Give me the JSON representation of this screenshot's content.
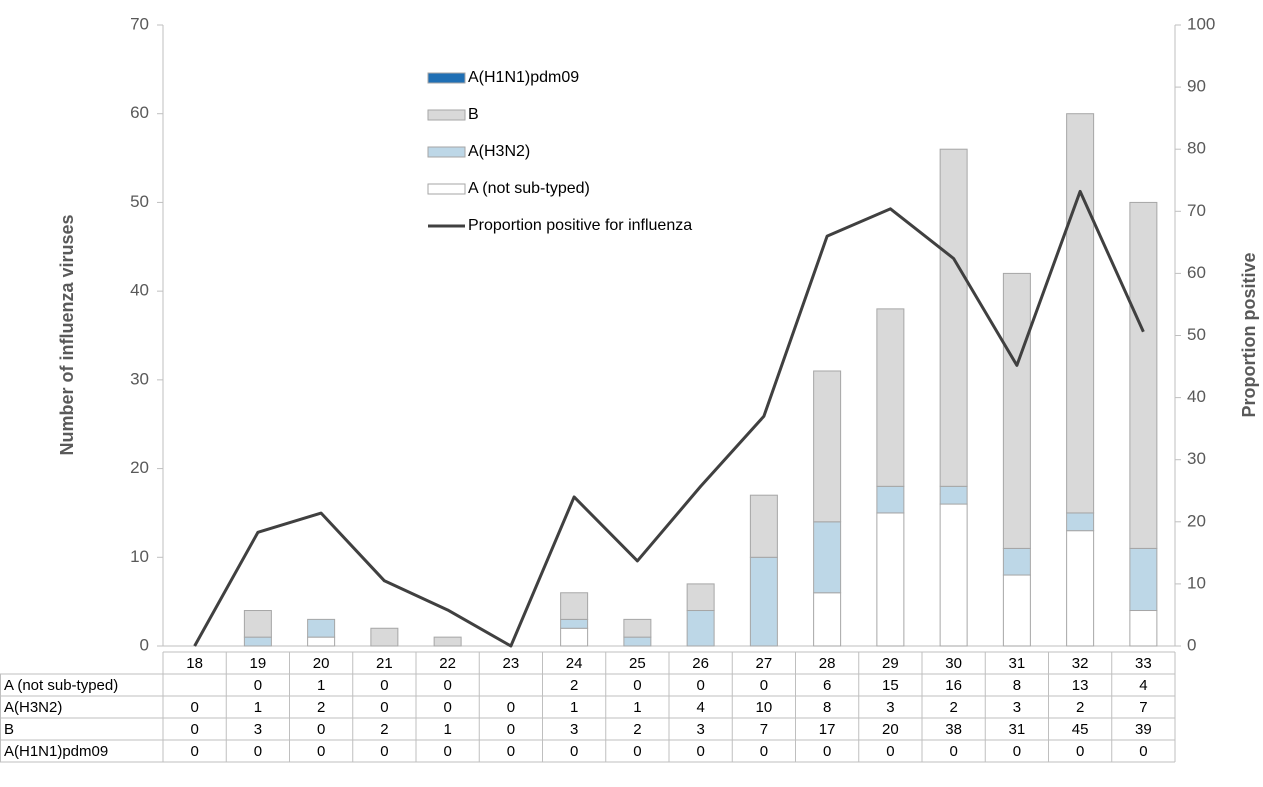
{
  "chart_data": {
    "type": "bar",
    "stacked": true,
    "y_label": "Number of influenza viruses",
    "y2_label": "Proportion positive",
    "categories": [
      "18",
      "19",
      "20",
      "21",
      "22",
      "23",
      "24",
      "25",
      "26",
      "27",
      "28",
      "29",
      "30",
      "31",
      "32",
      "33"
    ],
    "series": [
      {
        "name": "A (not sub-typed)",
        "color": "#ffffff",
        "values": [
          null,
          0,
          1,
          0,
          0,
          null,
          2,
          0,
          0,
          0,
          6,
          15,
          16,
          8,
          13,
          4
        ]
      },
      {
        "name": "A(H3N2)",
        "color": "#bdd7e7",
        "values": [
          0,
          1,
          2,
          0,
          0,
          0,
          1,
          1,
          4,
          10,
          8,
          3,
          2,
          3,
          2,
          7
        ]
      },
      {
        "name": "B",
        "color": "#d9d9d9",
        "values": [
          0,
          3,
          0,
          2,
          1,
          0,
          3,
          2,
          3,
          7,
          17,
          20,
          38,
          31,
          45,
          39
        ]
      },
      {
        "name": "A(H1N1)pdm09",
        "color": "#1f6fb4",
        "values": [
          0,
          0,
          0,
          0,
          0,
          0,
          0,
          0,
          0,
          0,
          0,
          0,
          0,
          0,
          0,
          0
        ]
      },
      {
        "name": "Proportion positive for influenza",
        "type": "line",
        "axis": "y2",
        "color": "#404040",
        "values": [
          0,
          18.3,
          21.4,
          10.5,
          5.8,
          0,
          24,
          13.7,
          25.7,
          37,
          66,
          70.4,
          62.4,
          45.2,
          73.2,
          50.6
        ]
      }
    ],
    "ylim": [
      0,
      70
    ],
    "yticks": [
      0,
      10,
      20,
      30,
      40,
      50,
      60,
      70
    ],
    "y2lim": [
      0,
      100
    ],
    "y2ticks": [
      0,
      10,
      20,
      30,
      40,
      50,
      60,
      70,
      80,
      90,
      100
    ]
  }
}
